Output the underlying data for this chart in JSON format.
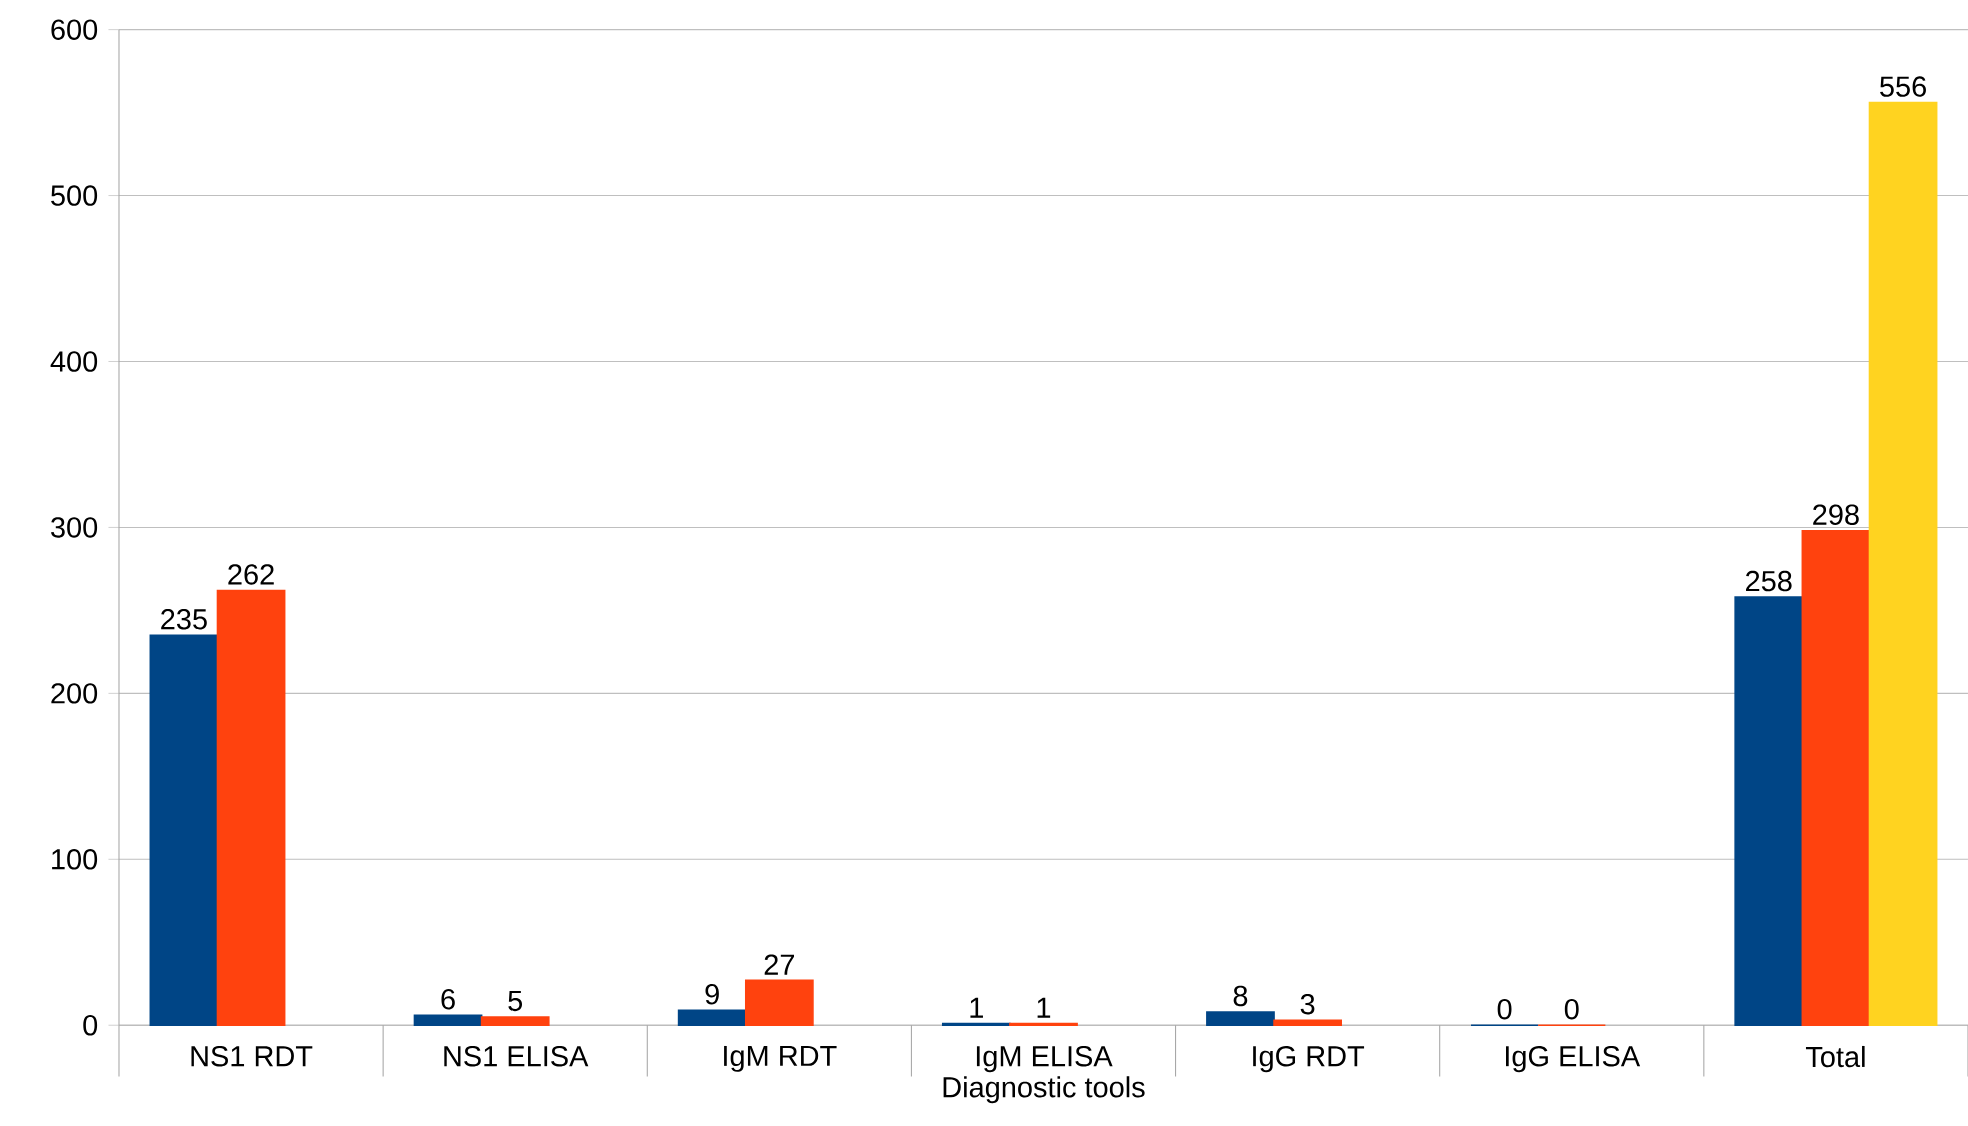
{
  "chart_data": {
    "type": "bar",
    "xlabel": "Diagnostic tools",
    "categories": [
      "NS1 RDT",
      "NS1 ELISA",
      "IgM RDT",
      "IgM ELISA",
      "IgG RDT",
      "IgG ELISA",
      "Total"
    ],
    "series": [
      {
        "color": "#004586",
        "values": [
          235,
          6,
          9,
          1,
          8,
          0,
          258
        ]
      },
      {
        "color": "#ff420e",
        "values": [
          262,
          5,
          27,
          1,
          3,
          0,
          298
        ]
      },
      {
        "color": "#ffd320",
        "values": [
          null,
          null,
          null,
          null,
          null,
          null,
          556
        ]
      }
    ],
    "ylim": [
      0,
      600
    ],
    "yticks": [
      0,
      100,
      200,
      300,
      400,
      500,
      600
    ],
    "grid": "y",
    "data_labels": true
  }
}
